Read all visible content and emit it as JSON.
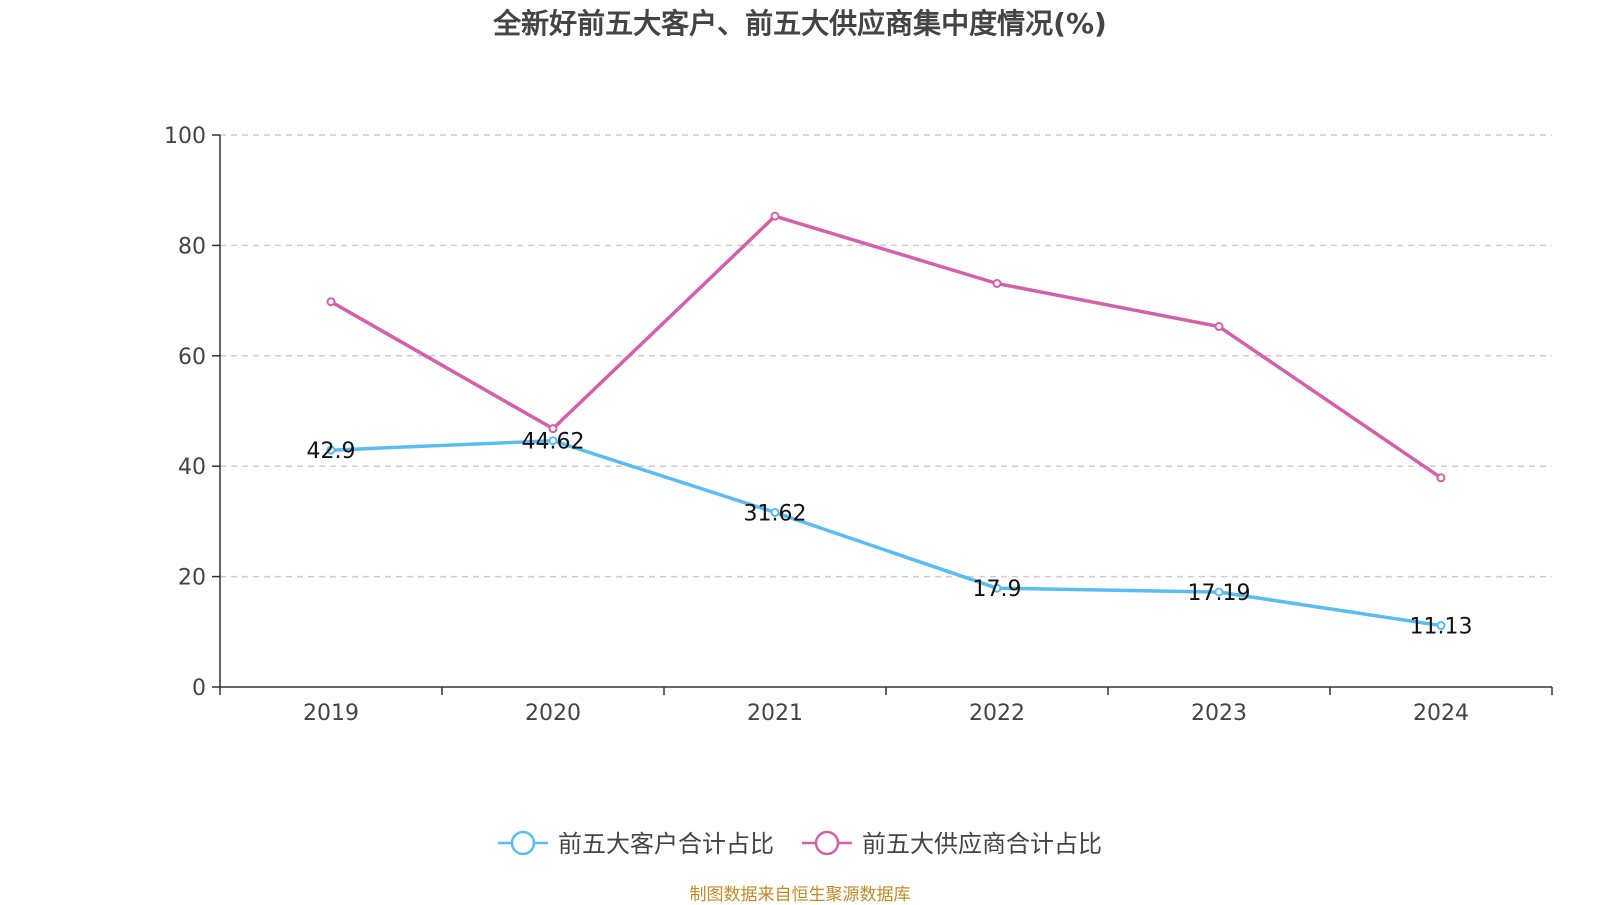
{
  "chart_data": {
    "type": "line",
    "title": "全新好前五大客户、前五大供应商集中度情况(%)",
    "categories": [
      "2019",
      "2020",
      "2021",
      "2022",
      "2023",
      "2024"
    ],
    "series": [
      {
        "name": "前五大客户合计占比",
        "color": "#5bbcf0",
        "values": [
          42.9,
          44.62,
          31.62,
          17.9,
          17.19,
          11.13
        ],
        "labels_shown": true
      },
      {
        "name": "前五大供应商合计占比",
        "color": "#d161a9",
        "values": [
          69.8,
          46.8,
          85.3,
          73.1,
          65.3,
          37.9
        ],
        "labels_shown": false
      }
    ],
    "ylim": [
      0,
      100
    ],
    "yticks": [
      0,
      20,
      40,
      60,
      80,
      100
    ],
    "grid": true,
    "legend_position": "bottom-center"
  },
  "source": "制图数据来自恒生聚源数据库"
}
